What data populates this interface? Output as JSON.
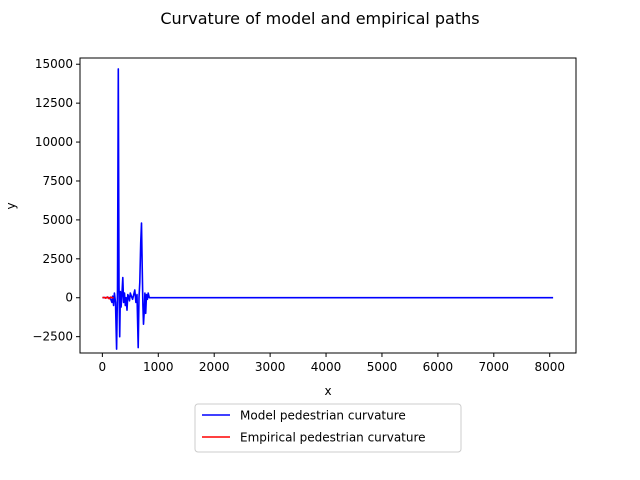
{
  "chart_data": {
    "type": "line",
    "title": "Curvature of model and empirical paths",
    "xlabel": "x",
    "ylabel": "y",
    "xlim": [
      -400,
      8470
    ],
    "ylim": [
      -3550,
      15400
    ],
    "xticks": [
      0,
      1000,
      2000,
      3000,
      4000,
      5000,
      6000,
      7000,
      8000
    ],
    "yticks": [
      -2500,
      0,
      2500,
      5000,
      7500,
      10000,
      12500,
      15000
    ],
    "grid": false,
    "legend_position": "below-center",
    "series": [
      {
        "name": "Model pedestrian curvature",
        "color": "#0000ff",
        "points": [
          [
            0,
            0
          ],
          [
            120,
            10
          ],
          [
            150,
            -100
          ],
          [
            170,
            -300
          ],
          [
            185,
            100
          ],
          [
            200,
            -500
          ],
          [
            215,
            300
          ],
          [
            235,
            -300
          ],
          [
            255,
            -3300
          ],
          [
            270,
            500
          ],
          [
            285,
            14700
          ],
          [
            298,
            800
          ],
          [
            310,
            -2500
          ],
          [
            322,
            400
          ],
          [
            335,
            -600
          ],
          [
            350,
            200
          ],
          [
            365,
            1300
          ],
          [
            380,
            -300
          ],
          [
            395,
            300
          ],
          [
            410,
            -500
          ],
          [
            425,
            0
          ],
          [
            440,
            -800
          ],
          [
            455,
            200
          ],
          [
            470,
            100
          ],
          [
            485,
            -200
          ],
          [
            500,
            300
          ],
          [
            520,
            100
          ],
          [
            540,
            -100
          ],
          [
            560,
            200
          ],
          [
            580,
            500
          ],
          [
            600,
            -300
          ],
          [
            620,
            200
          ],
          [
            640,
            -3200
          ],
          [
            655,
            0
          ],
          [
            670,
            1000
          ],
          [
            685,
            3500
          ],
          [
            700,
            4800
          ],
          [
            712,
            2000
          ],
          [
            725,
            -500
          ],
          [
            735,
            -1700
          ],
          [
            748,
            -900
          ],
          [
            760,
            300
          ],
          [
            775,
            -1000
          ],
          [
            790,
            200
          ],
          [
            805,
            -100
          ],
          [
            820,
            300
          ],
          [
            840,
            0
          ],
          [
            900,
            0
          ],
          [
            1500,
            0
          ],
          [
            3000,
            0
          ],
          [
            5000,
            0
          ],
          [
            7000,
            0
          ],
          [
            8060,
            0
          ]
        ]
      },
      {
        "name": "Empirical pedestrian curvature",
        "color": "#ff0000",
        "points": [
          [
            0,
            0
          ],
          [
            30,
            20
          ],
          [
            60,
            -30
          ],
          [
            90,
            50
          ],
          [
            120,
            -60
          ],
          [
            150,
            40
          ],
          [
            180,
            0
          ],
          [
            200,
            0
          ]
        ]
      }
    ],
    "tick_labels": {
      "x": [
        "0",
        "1000",
        "2000",
        "3000",
        "4000",
        "5000",
        "6000",
        "7000",
        "8000"
      ],
      "y": [
        "−2500",
        "0",
        "2500",
        "5000",
        "7500",
        "10000",
        "12500",
        "15000"
      ]
    }
  }
}
